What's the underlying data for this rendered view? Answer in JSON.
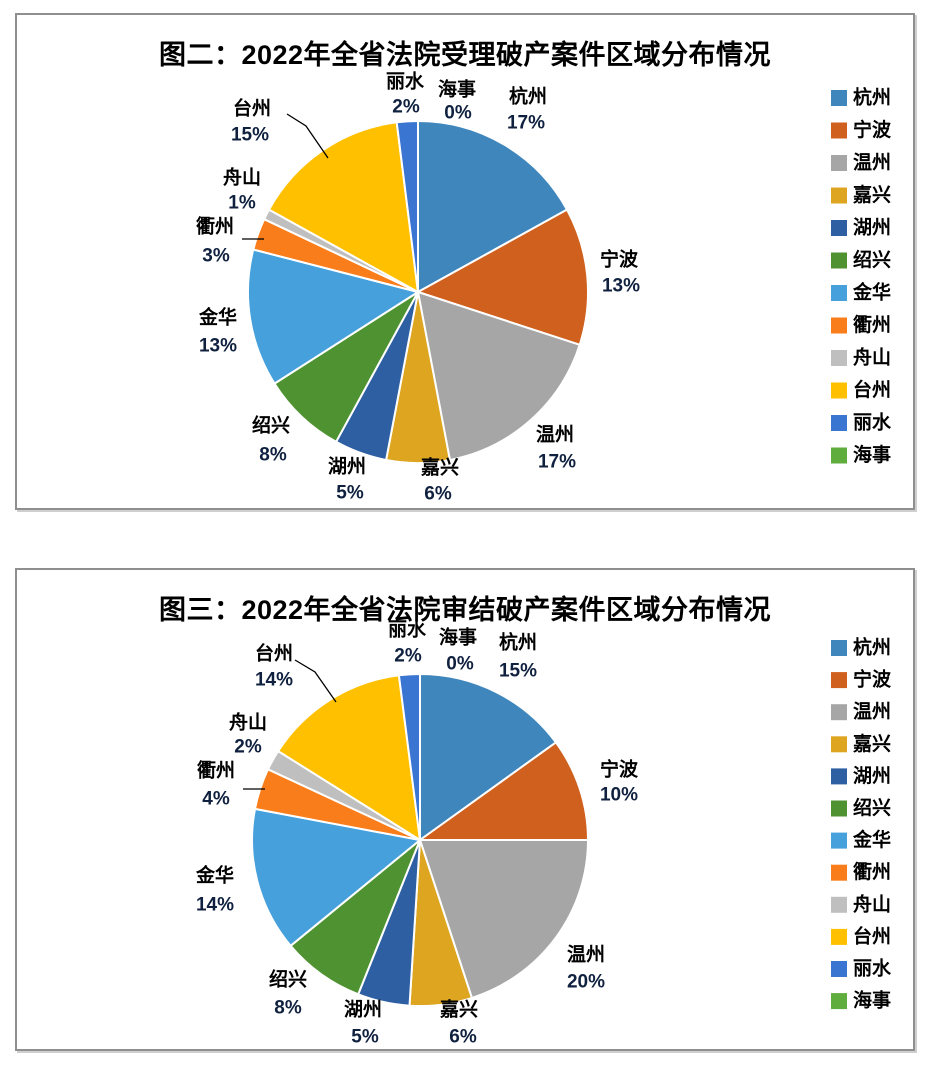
{
  "chart_data": [
    {
      "type": "pie",
      "title": "图二：2022年全省法院受理破产案件区域分布情况",
      "categories": [
        "杭州",
        "宁波",
        "温州",
        "嘉兴",
        "湖州",
        "绍兴",
        "金华",
        "衢州",
        "舟山",
        "台州",
        "丽水",
        "海事"
      ],
      "values": [
        17,
        13,
        17,
        6,
        5,
        8,
        13,
        3,
        1,
        15,
        2,
        0
      ],
      "data_labels": [
        "17%",
        "13%",
        "17%",
        "6%",
        "5%",
        "8%",
        "13%",
        "3%",
        "1%",
        "15%",
        "2%",
        "0%"
      ],
      "unit": "%",
      "legend_position": "right",
      "colors": [
        "#3E86BC",
        "#D0601E",
        "#A6A6A6",
        "#DEA521",
        "#2E5FA3",
        "#4F9232",
        "#46A0DC",
        "#F97D1A",
        "#BFBFBF",
        "#FFC000",
        "#3A75D1",
        "#5EAD3D"
      ]
    },
    {
      "type": "pie",
      "title": "图三：2022年全省法院审结破产案件区域分布情况",
      "categories": [
        "杭州",
        "宁波",
        "温州",
        "嘉兴",
        "湖州",
        "绍兴",
        "金华",
        "衢州",
        "舟山",
        "台州",
        "丽水",
        "海事"
      ],
      "values": [
        15,
        10,
        20,
        6,
        5,
        8,
        14,
        4,
        2,
        14,
        2,
        0
      ],
      "data_labels": [
        "15%",
        "10%",
        "20%",
        "6%",
        "5%",
        "8%",
        "14%",
        "4%",
        "2%",
        "14%",
        "2%",
        "0%"
      ],
      "unit": "%",
      "legend_position": "right",
      "colors": [
        "#3E86BC",
        "#D0601E",
        "#A6A6A6",
        "#DEA521",
        "#2E5FA3",
        "#4F9232",
        "#46A0DC",
        "#F97D1A",
        "#BFBFBF",
        "#FFC000",
        "#3A75D1",
        "#5EAD3D"
      ]
    }
  ]
}
